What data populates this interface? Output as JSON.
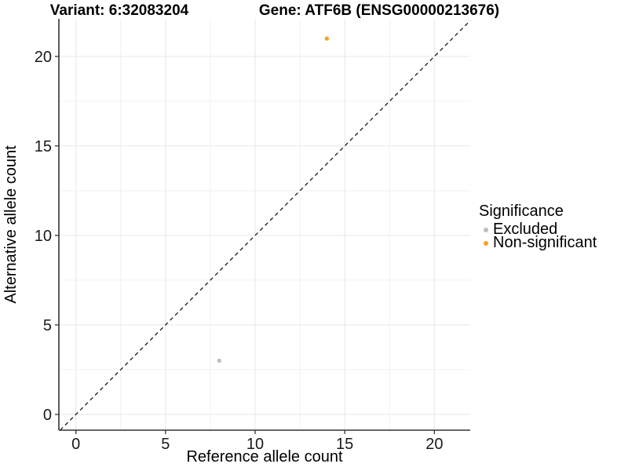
{
  "titles": {
    "variant": "Variant: 6:32083204",
    "gene": "Gene: ATF6B (ENSG00000213676)"
  },
  "chart_data": {
    "type": "scatter",
    "xlabel": "Reference allele count",
    "ylabel": "Alternative allele count",
    "xlim": [
      -0.95,
      22.0
    ],
    "ylim": [
      -0.88,
      22.1
    ],
    "x_ticks": [
      0,
      5,
      10,
      15,
      20
    ],
    "y_ticks": [
      0,
      5,
      10,
      15,
      20
    ],
    "minor_step": 2.5,
    "grid": true,
    "identity_line": {
      "slope": 1,
      "intercept": 0,
      "style": "dashed",
      "color": "#1a1a1a"
    },
    "series": [
      {
        "name": "Excluded",
        "color": "#BEBEBE",
        "points": [
          {
            "x": 8,
            "y": 3
          }
        ]
      },
      {
        "name": "Non-significant",
        "color": "#FBA024",
        "points": [
          {
            "x": 14,
            "y": 21
          }
        ]
      }
    ],
    "legend": {
      "title": "Significance",
      "position": "right"
    }
  },
  "style": {
    "axis_color": "#333333",
    "major_grid_color": "#e7e7e7",
    "minor_grid_color": "#f1f1f1",
    "tick_label_color": "#1a1a1a"
  }
}
